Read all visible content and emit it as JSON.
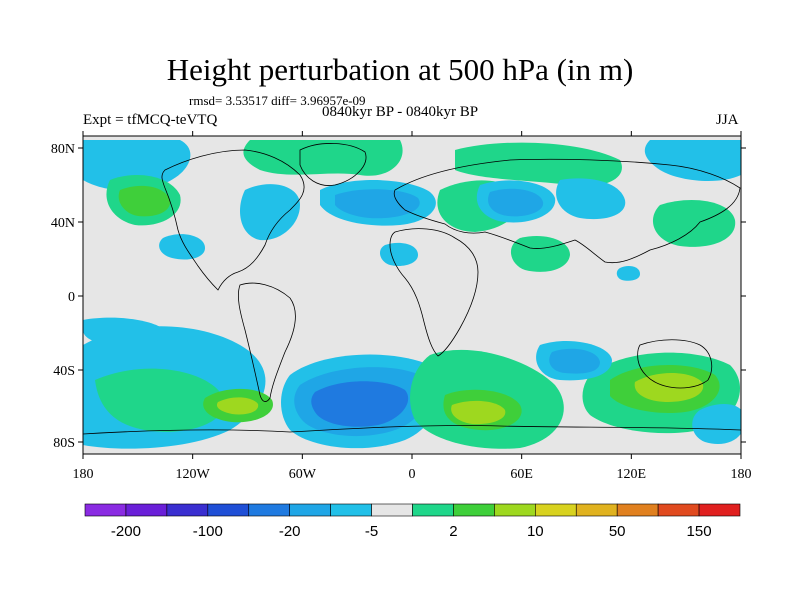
{
  "header": {
    "title": "Height perturbation at 500 hPa (in m)",
    "stats": "rmsd= 3.53517 diff= 3.96957e-09",
    "expt": "Expt = tfMCQ-teVTQ",
    "period": "0840kyr BP - 0840kyr BP",
    "season": "JJA"
  },
  "axes": {
    "x_ticks": [
      "180",
      "120W",
      "60W",
      "0",
      "60E",
      "120E",
      "180"
    ],
    "y_ticks": [
      "80N",
      "40N",
      "0",
      "40S",
      "80S"
    ]
  },
  "colorbar": {
    "colors": [
      "#8a2be2",
      "#6a1fd8",
      "#3a2fd0",
      "#1f4fd6",
      "#1f7ae0",
      "#1fa6e6",
      "#22c0e8",
      "#e6e6e6",
      "#1fd68a",
      "#3fcf3a",
      "#9ed81f",
      "#d8d21f",
      "#e0b21f",
      "#e0801f",
      "#e04a1f",
      "#e0201f"
    ],
    "labels": [
      "-200",
      "-100",
      "-20",
      "-5",
      "2",
      "10",
      "50",
      "150"
    ]
  },
  "palette": {
    "ocean_bg": "#e6e6e6",
    "blue_light": "#1fa6e6",
    "blue_mid": "#1f7ae0",
    "blue_dark": "#1f4fd6",
    "green_light": "#1fd68a",
    "green_mid": "#3fcf3a",
    "yellow_green": "#9ed81f"
  }
}
